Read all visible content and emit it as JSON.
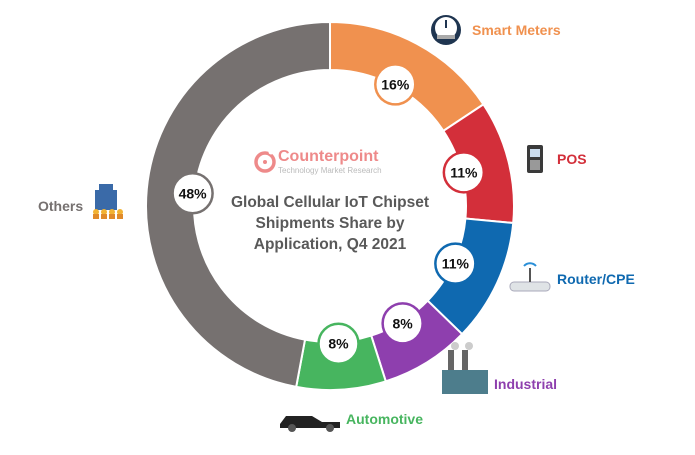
{
  "chart_data": {
    "type": "donut",
    "title": "Global Cellular IoT Chipset Shipments Share by Application, Q4 2021",
    "title_lines": [
      "Global Cellular IoT Chipset",
      "Shipments Share by",
      "Application, Q4 2021"
    ],
    "unit": "%",
    "slices": [
      {
        "label": "Smart Meters",
        "value": 16,
        "display": "16%",
        "color": "#F0914F",
        "icon": "gauge-meter-icon"
      },
      {
        "label": "POS",
        "value": 11,
        "display": "11%",
        "color": "#D32F3A",
        "icon": "pos-terminal-icon"
      },
      {
        "label": "Router/CPE",
        "value": 11,
        "display": "11%",
        "color": "#0F69B0",
        "icon": "router-icon"
      },
      {
        "label": "Industrial",
        "value": 8,
        "display": "8%",
        "color": "#8E3FAE",
        "icon": "factory-icon"
      },
      {
        "label": "Automotive",
        "value": 8,
        "display": "8%",
        "color": "#47B55F",
        "icon": "car-icon"
      },
      {
        "label": "Others",
        "value": 48,
        "display": "48%",
        "color": "#767170",
        "icon": "buildings-people-icon"
      }
    ]
  },
  "logo": {
    "name": "Counterpoint",
    "tagline": "Technology Market Research",
    "color": "#EE8A8A"
  }
}
